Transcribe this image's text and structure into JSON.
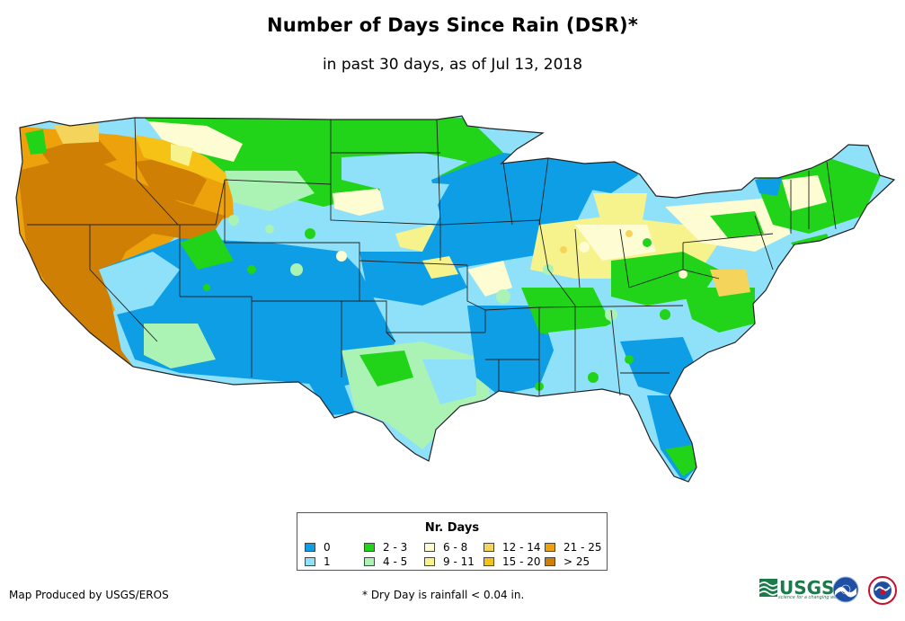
{
  "title": "Number of Days Since Rain (DSR)*",
  "subtitle": "in past 30 days, as of Jul 13, 2018",
  "legend": {
    "title": "Nr. Days",
    "items": [
      {
        "label": "0",
        "color": "#0e9ee6"
      },
      {
        "label": "1",
        "color": "#8ee1f8"
      },
      {
        "label": "2 - 3",
        "color": "#21d319"
      },
      {
        "label": "4 - 5",
        "color": "#aaf3b5"
      },
      {
        "label": "6 - 8",
        "color": "#fdfcd2"
      },
      {
        "label": "9 - 11",
        "color": "#f6f28c"
      },
      {
        "label": "12 - 14",
        "color": "#f5d45b"
      },
      {
        "label": "15 - 20",
        "color": "#f6c216"
      },
      {
        "label": "21 - 25",
        "color": "#eda20c"
      },
      {
        "label": "> 25",
        "color": "#cf7f04"
      }
    ]
  },
  "footer": {
    "credit": "Map Produced by USGS/EROS",
    "note": "* Dry Day is rainfall < 0.04 in."
  },
  "logos": {
    "usgs": "USGS",
    "usgs_tagline": "science for a changing world",
    "noaa": "noaa-logo",
    "nws": "nws-logo"
  },
  "colors": {
    "boundary": "#222222"
  }
}
